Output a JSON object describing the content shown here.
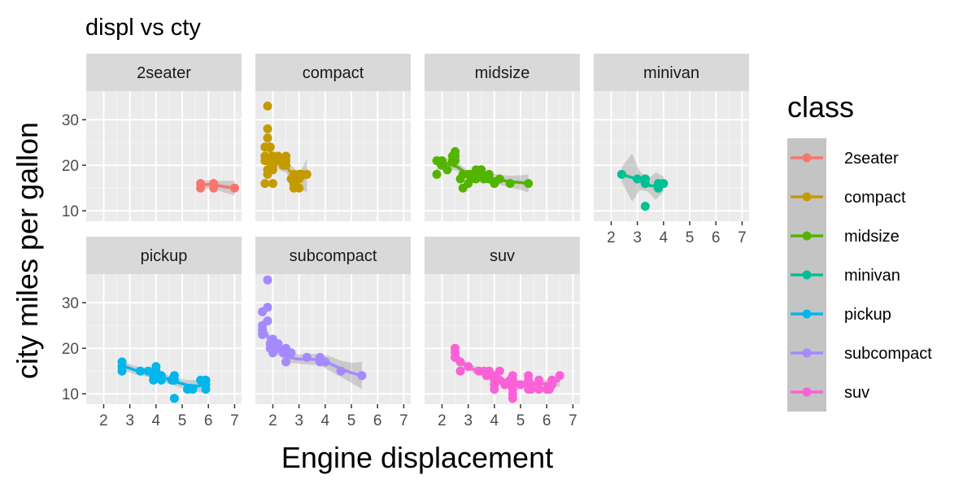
{
  "chart_data": {
    "type": "scatter",
    "title": "displ vs cty",
    "xlabel": "Engine displacement",
    "ylabel": "city miles per gallon",
    "xlim": [
      1.6,
      7.0
    ],
    "ylim": [
      9,
      35
    ],
    "x_ticks": [
      2,
      3,
      4,
      5,
      6,
      7
    ],
    "y_ticks": [
      10,
      20,
      30
    ],
    "grid": true,
    "smooth": "loess",
    "legend": {
      "title": "class",
      "position": "right",
      "entries": [
        "2seater",
        "compact",
        "midsize",
        "minivan",
        "pickup",
        "subcompact",
        "suv"
      ]
    },
    "panels": [
      {
        "name": "2seater",
        "color": "#F8766D",
        "points": [
          [
            5.7,
            16
          ],
          [
            5.7,
            15
          ],
          [
            6.2,
            15
          ],
          [
            6.2,
            16
          ],
          [
            7.0,
            15
          ]
        ],
        "smooth": [
          [
            5.7,
            15.6
          ],
          [
            6.0,
            15.8
          ],
          [
            6.3,
            15.6
          ],
          [
            6.6,
            15.3
          ],
          [
            7.0,
            15.0
          ]
        ],
        "band": [
          [
            5.7,
            14.6,
            16.6
          ],
          [
            6.0,
            14.9,
            16.7
          ],
          [
            6.3,
            14.7,
            16.5
          ],
          [
            6.6,
            14.0,
            16.6
          ],
          [
            7.0,
            13.4,
            16.6
          ]
        ]
      },
      {
        "name": "compact",
        "color": "#C49A00",
        "points": [
          [
            1.8,
            18
          ],
          [
            1.8,
            21
          ],
          [
            2.0,
            20
          ],
          [
            2.0,
            21
          ],
          [
            2.8,
            16
          ],
          [
            2.8,
            18
          ],
          [
            3.1,
            18
          ],
          [
            1.8,
            26
          ],
          [
            1.8,
            28
          ],
          [
            1.8,
            33
          ],
          [
            1.9,
            24
          ],
          [
            2.0,
            19
          ],
          [
            2.0,
            22
          ],
          [
            2.2,
            21
          ],
          [
            2.4,
            21
          ],
          [
            2.5,
            20
          ],
          [
            2.5,
            21
          ],
          [
            2.7,
            17
          ],
          [
            2.8,
            15
          ],
          [
            3.0,
            18
          ],
          [
            3.3,
            18
          ],
          [
            2.0,
            16
          ],
          [
            2.2,
            22
          ],
          [
            2.4,
            20
          ],
          [
            1.7,
            16
          ],
          [
            1.7,
            21
          ],
          [
            1.7,
            22
          ],
          [
            1.7,
            24
          ],
          [
            1.8,
            19
          ],
          [
            2.5,
            22
          ],
          [
            2.8,
            17
          ],
          [
            3.0,
            15
          ],
          [
            3.0,
            17
          ]
        ],
        "smooth": [
          [
            1.7,
            24.0
          ],
          [
            1.9,
            23.0
          ],
          [
            2.1,
            21.0
          ],
          [
            2.3,
            20.0
          ],
          [
            2.5,
            19.8
          ],
          [
            2.7,
            18.3
          ],
          [
            2.9,
            16.8
          ],
          [
            3.1,
            16.8
          ],
          [
            3.3,
            17.8
          ]
        ],
        "band": [
          [
            1.7,
            21.5,
            26.5
          ],
          [
            1.9,
            21.0,
            25.0
          ],
          [
            2.1,
            19.8,
            22.2
          ],
          [
            2.3,
            18.8,
            21.2
          ],
          [
            2.5,
            18.4,
            21.2
          ],
          [
            2.7,
            16.6,
            20.0
          ],
          [
            2.9,
            14.8,
            18.8
          ],
          [
            3.1,
            14.4,
            19.2
          ],
          [
            3.3,
            14.2,
            21.4
          ]
        ]
      },
      {
        "name": "midsize",
        "color": "#53B400",
        "points": [
          [
            1.8,
            18
          ],
          [
            1.8,
            21
          ],
          [
            2.0,
            20
          ],
          [
            2.0,
            21
          ],
          [
            2.4,
            21
          ],
          [
            2.4,
            22
          ],
          [
            2.5,
            21
          ],
          [
            2.5,
            23
          ],
          [
            2.5,
            22
          ],
          [
            2.8,
            18
          ],
          [
            3.1,
            18
          ],
          [
            3.1,
            17
          ],
          [
            2.8,
            15
          ],
          [
            3.0,
            16
          ],
          [
            3.3,
            17
          ],
          [
            3.5,
            18
          ],
          [
            3.5,
            19
          ],
          [
            3.8,
            17
          ],
          [
            4.0,
            16
          ],
          [
            4.2,
            17
          ],
          [
            4.6,
            16
          ],
          [
            5.3,
            16
          ],
          [
            2.7,
            17
          ],
          [
            3.0,
            18
          ],
          [
            3.3,
            19
          ],
          [
            3.6,
            17
          ],
          [
            3.8,
            18
          ],
          [
            2.2,
            19
          ]
        ],
        "smooth": [
          [
            1.8,
            20.0
          ],
          [
            2.2,
            20.4
          ],
          [
            2.6,
            19.6
          ],
          [
            3.0,
            17.9
          ],
          [
            3.4,
            17.9
          ],
          [
            3.8,
            17.3
          ],
          [
            4.2,
            16.8
          ],
          [
            4.6,
            16.4
          ],
          [
            5.0,
            16.2
          ],
          [
            5.3,
            16.0
          ]
        ],
        "band": [
          [
            1.8,
            18.8,
            21.2
          ],
          [
            2.2,
            19.3,
            21.5
          ],
          [
            2.6,
            18.7,
            20.5
          ],
          [
            3.0,
            17.0,
            18.8
          ],
          [
            3.4,
            17.0,
            18.8
          ],
          [
            3.8,
            16.3,
            18.3
          ],
          [
            4.2,
            15.7,
            17.9
          ],
          [
            4.6,
            15.1,
            17.7
          ],
          [
            5.0,
            14.6,
            17.8
          ],
          [
            5.3,
            14.0,
            18.0
          ]
        ]
      },
      {
        "name": "minivan",
        "color": "#00C094",
        "points": [
          [
            2.4,
            18
          ],
          [
            3.0,
            17
          ],
          [
            3.3,
            17
          ],
          [
            3.3,
            16
          ],
          [
            3.3,
            11
          ],
          [
            3.8,
            15
          ],
          [
            3.8,
            16
          ],
          [
            4.0,
            16
          ],
          [
            3.3,
            17
          ],
          [
            3.8,
            15
          ]
        ],
        "smooth": [
          [
            2.4,
            18.0
          ],
          [
            2.8,
            17.3
          ],
          [
            3.1,
            16.6
          ],
          [
            3.4,
            15.6
          ],
          [
            3.7,
            15.4
          ],
          [
            4.0,
            15.9
          ]
        ],
        "band": [
          [
            2.4,
            16.4,
            19.6
          ],
          [
            2.8,
            12.0,
            22.6
          ],
          [
            3.1,
            14.6,
            18.6
          ],
          [
            3.4,
            14.2,
            17.0
          ],
          [
            3.7,
            12.4,
            18.4
          ],
          [
            4.0,
            14.2,
            17.6
          ]
        ]
      },
      {
        "name": "pickup",
        "color": "#00B6EB",
        "points": [
          [
            2.7,
            15
          ],
          [
            2.7,
            16
          ],
          [
            2.7,
            17
          ],
          [
            3.4,
            15
          ],
          [
            3.7,
            15
          ],
          [
            3.9,
            14
          ],
          [
            4.0,
            15
          ],
          [
            4.0,
            16
          ],
          [
            4.2,
            14
          ],
          [
            4.6,
            13
          ],
          [
            4.7,
            9
          ],
          [
            4.7,
            14
          ],
          [
            5.2,
            11
          ],
          [
            5.4,
            11
          ],
          [
            5.7,
            13
          ],
          [
            5.9,
            12
          ],
          [
            5.9,
            13
          ],
          [
            5.9,
            11
          ],
          [
            4.0,
            14
          ],
          [
            4.7,
            13
          ],
          [
            3.9,
            13
          ],
          [
            4.2,
            13
          ]
        ],
        "smooth": [
          [
            2.7,
            16.2
          ],
          [
            3.2,
            15.2
          ],
          [
            3.7,
            14.6
          ],
          [
            4.2,
            13.8
          ],
          [
            4.7,
            12.7
          ],
          [
            5.2,
            11.9
          ],
          [
            5.6,
            11.7
          ],
          [
            5.9,
            12.0
          ]
        ],
        "band": [
          [
            2.7,
            15.2,
            17.2
          ],
          [
            3.2,
            14.3,
            16.1
          ],
          [
            3.7,
            13.7,
            15.5
          ],
          [
            4.2,
            12.9,
            14.7
          ],
          [
            4.7,
            11.8,
            13.6
          ],
          [
            5.2,
            10.8,
            13.0
          ],
          [
            5.6,
            10.4,
            13.0
          ],
          [
            5.9,
            10.2,
            13.8
          ]
        ]
      },
      {
        "name": "subcompact",
        "color": "#A58AFF",
        "points": [
          [
            1.6,
            24
          ],
          [
            1.6,
            25
          ],
          [
            1.6,
            28
          ],
          [
            1.8,
            29
          ],
          [
            1.8,
            35
          ],
          [
            1.8,
            26
          ],
          [
            1.9,
            21
          ],
          [
            1.9,
            20
          ],
          [
            2.0,
            19
          ],
          [
            2.0,
            21
          ],
          [
            2.2,
            21
          ],
          [
            2.4,
            19
          ],
          [
            2.5,
            17
          ],
          [
            3.8,
            18
          ],
          [
            3.8,
            17
          ],
          [
            4.0,
            17
          ],
          [
            4.6,
            15
          ],
          [
            5.4,
            14
          ],
          [
            2.0,
            22
          ],
          [
            1.6,
            23
          ],
          [
            2.7,
            19
          ],
          [
            3.3,
            18
          ],
          [
            2.5,
            20
          ],
          [
            2.0,
            20
          ],
          [
            2.2,
            20
          ]
        ],
        "smooth": [
          [
            1.6,
            25.2
          ],
          [
            1.8,
            22.6
          ],
          [
            2.0,
            20.2
          ],
          [
            2.3,
            19.2
          ],
          [
            2.6,
            18.0
          ],
          [
            3.0,
            17.6
          ],
          [
            3.4,
            17.6
          ],
          [
            3.8,
            17.5
          ],
          [
            4.2,
            16.6
          ],
          [
            4.6,
            15.5
          ],
          [
            5.0,
            14.6
          ],
          [
            5.4,
            14.0
          ]
        ],
        "band": [
          [
            1.6,
            23.7,
            26.7
          ],
          [
            1.8,
            21.3,
            23.9
          ],
          [
            2.0,
            19.0,
            21.4
          ],
          [
            2.3,
            18.1,
            20.3
          ],
          [
            2.6,
            16.8,
            19.2
          ],
          [
            3.0,
            16.6,
            18.6
          ],
          [
            3.4,
            16.4,
            18.8
          ],
          [
            3.8,
            16.3,
            18.7
          ],
          [
            4.2,
            15.0,
            18.2
          ],
          [
            4.6,
            13.7,
            17.3
          ],
          [
            5.0,
            12.4,
            16.8
          ],
          [
            5.4,
            11.0,
            17.0
          ]
        ]
      },
      {
        "name": "suv",
        "color": "#FB61D7",
        "points": [
          [
            2.5,
            18
          ],
          [
            2.5,
            19
          ],
          [
            2.5,
            20
          ],
          [
            2.7,
            17
          ],
          [
            2.7,
            15
          ],
          [
            3.0,
            16
          ],
          [
            3.4,
            15
          ],
          [
            3.7,
            14
          ],
          [
            4.0,
            13
          ],
          [
            4.0,
            14
          ],
          [
            4.0,
            11
          ],
          [
            4.0,
            12
          ],
          [
            4.2,
            15
          ],
          [
            4.2,
            13
          ],
          [
            4.6,
            13
          ],
          [
            4.6,
            12
          ],
          [
            4.7,
            11
          ],
          [
            4.7,
            12
          ],
          [
            4.7,
            14
          ],
          [
            4.7,
            9
          ],
          [
            4.7,
            13
          ],
          [
            5.3,
            11
          ],
          [
            5.3,
            14
          ],
          [
            5.3,
            13
          ],
          [
            5.3,
            12
          ],
          [
            5.4,
            11
          ],
          [
            5.4,
            12
          ],
          [
            5.7,
            11
          ],
          [
            5.7,
            13
          ],
          [
            6.1,
            11
          ],
          [
            6.2,
            12
          ],
          [
            6.5,
            14
          ],
          [
            6.2,
            13
          ],
          [
            4.4,
            12
          ],
          [
            3.8,
            15
          ],
          [
            3.9,
            14
          ],
          [
            3.6,
            15
          ],
          [
            4.7,
            10
          ],
          [
            6.0,
            11
          ],
          [
            5.0,
            12
          ]
        ],
        "smooth": [
          [
            2.5,
            18.2
          ],
          [
            2.9,
            16.3
          ],
          [
            3.3,
            15.1
          ],
          [
            3.7,
            14.2
          ],
          [
            4.1,
            13.4
          ],
          [
            4.5,
            12.8
          ],
          [
            4.9,
            12.5
          ],
          [
            5.3,
            12.3
          ],
          [
            5.7,
            12.1
          ],
          [
            6.1,
            12.3
          ],
          [
            6.5,
            13.0
          ]
        ],
        "band": [
          [
            2.5,
            17.0,
            19.4
          ],
          [
            2.9,
            15.5,
            17.1
          ],
          [
            3.3,
            14.3,
            15.9
          ],
          [
            3.7,
            13.6,
            14.8
          ],
          [
            4.1,
            12.9,
            13.9
          ],
          [
            4.5,
            12.3,
            13.3
          ],
          [
            4.9,
            12.0,
            13.0
          ],
          [
            5.3,
            11.8,
            12.8
          ],
          [
            5.7,
            11.4,
            12.8
          ],
          [
            6.1,
            11.4,
            13.2
          ],
          [
            6.5,
            11.6,
            14.4
          ]
        ]
      }
    ]
  }
}
